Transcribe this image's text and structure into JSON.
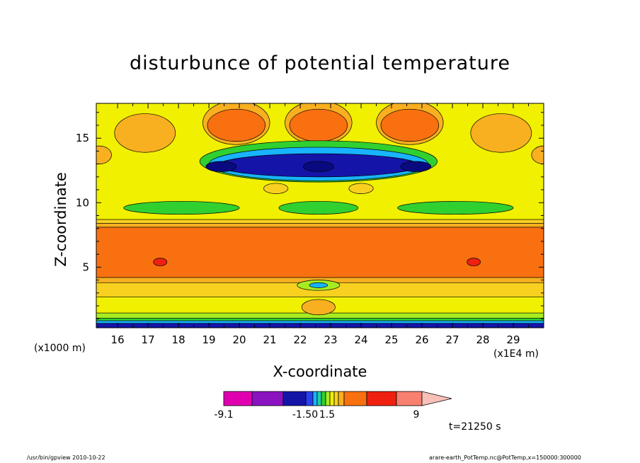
{
  "chart_data": {
    "type": "heatmap",
    "title": "disturbunce of potential temperature",
    "xlabel": "X-coordinate",
    "ylabel": "Z-coordinate",
    "x_unit": "(x1E4 m)",
    "y_unit": "(x1000 m)",
    "xlim": [
      15.3,
      30.0
    ],
    "ylim": [
      0.3,
      17.7
    ],
    "x_ticks": [
      "16",
      "17",
      "18",
      "19",
      "20",
      "21",
      "22",
      "23",
      "24",
      "25",
      "26",
      "27",
      "28",
      "29"
    ],
    "y_ticks": [
      "5",
      "10",
      "15"
    ],
    "time_label": "t=21250 s",
    "colorbar": {
      "tick_labels": [
        "-9.1",
        "-1.50",
        "1.5",
        "9"
      ],
      "colors": [
        "#e000b0",
        "#8a12c0",
        "#1414a8",
        "#2840f0",
        "#18b4ff",
        "#20d0a0",
        "#30d030",
        "#a8ec20",
        "#f0f000",
        "#f8d020",
        "#f8b020",
        "#f87010",
        "#f02010",
        "#f88070",
        "#f8c0b8"
      ]
    },
    "fields": [
      {
        "type": "band",
        "z": [
          0.3,
          0.65
        ],
        "color": "#1414a8"
      },
      {
        "type": "band",
        "z": [
          0.65,
          0.85
        ],
        "color": "#18b4ff"
      },
      {
        "type": "band",
        "z": [
          0.85,
          1.05
        ],
        "color": "#30d030"
      },
      {
        "type": "band",
        "z": [
          1.05,
          1.45
        ],
        "color": "#a8ec20"
      },
      {
        "type": "band",
        "z": [
          1.45,
          2.7
        ],
        "color": "#f0f000"
      },
      {
        "type": "band",
        "z": [
          2.7,
          3.8
        ],
        "color": "#f8d020"
      },
      {
        "type": "band",
        "z": [
          3.8,
          4.2
        ],
        "color": "#f8b020"
      },
      {
        "type": "band",
        "z": [
          4.2,
          8.1
        ],
        "color": "#f87010"
      },
      {
        "type": "band",
        "z": [
          8.1,
          8.4
        ],
        "color": "#f8b020"
      },
      {
        "type": "band",
        "z": [
          8.4,
          8.7
        ],
        "color": "#f8d020"
      },
      {
        "type": "band",
        "z": [
          8.7,
          17.7
        ],
        "color": "#f0f000"
      },
      {
        "type": "blob",
        "x": 19.9,
        "z": 16.2,
        "rx": 1.1,
        "rz": 1.7,
        "color": "#f8b020"
      },
      {
        "type": "blob",
        "x": 22.6,
        "z": 16.2,
        "rx": 1.1,
        "rz": 1.7,
        "color": "#f8b020"
      },
      {
        "type": "blob",
        "x": 25.6,
        "z": 16.2,
        "rx": 1.1,
        "rz": 1.7,
        "color": "#f8b020"
      },
      {
        "type": "blob",
        "x": 19.9,
        "z": 16.0,
        "rx": 0.95,
        "rz": 1.25,
        "color": "#f87010"
      },
      {
        "type": "blob",
        "x": 22.6,
        "z": 16.0,
        "rx": 0.95,
        "rz": 1.25,
        "color": "#f87010"
      },
      {
        "type": "blob",
        "x": 25.6,
        "z": 16.0,
        "rx": 0.95,
        "rz": 1.25,
        "color": "#f87010"
      },
      {
        "type": "blob",
        "x": 16.9,
        "z": 15.4,
        "rx": 1.0,
        "rz": 1.5,
        "color": "#f8b020"
      },
      {
        "type": "blob",
        "x": 28.6,
        "z": 15.4,
        "rx": 1.0,
        "rz": 1.5,
        "color": "#f8b020"
      },
      {
        "type": "blob",
        "x": 15.4,
        "z": 13.7,
        "rx": 0.4,
        "rz": 0.7,
        "color": "#f8b020"
      },
      {
        "type": "blob",
        "x": 30.0,
        "z": 13.7,
        "rx": 0.4,
        "rz": 0.7,
        "color": "#f8b020"
      },
      {
        "type": "blob",
        "x": 22.6,
        "z": 13.2,
        "rx": 3.9,
        "rz": 1.6,
        "color": "#30d030"
      },
      {
        "type": "blob",
        "x": 22.6,
        "z": 13.0,
        "rx": 3.6,
        "rz": 1.3,
        "color": "#18b4ff"
      },
      {
        "type": "blob",
        "x": 22.6,
        "z": 12.9,
        "rx": 3.3,
        "rz": 0.9,
        "color": "#1414a8"
      },
      {
        "type": "blob",
        "x": 19.4,
        "z": 12.8,
        "rx": 0.5,
        "rz": 0.4,
        "color": "#0a0a80"
      },
      {
        "type": "blob",
        "x": 22.6,
        "z": 12.8,
        "rx": 0.5,
        "rz": 0.4,
        "color": "#0a0a80"
      },
      {
        "type": "blob",
        "x": 25.8,
        "z": 12.8,
        "rx": 0.5,
        "rz": 0.4,
        "color": "#0a0a80"
      },
      {
        "type": "blob",
        "x": 18.1,
        "z": 9.6,
        "rx": 1.9,
        "rz": 0.5,
        "color": "#30d030"
      },
      {
        "type": "blob",
        "x": 22.6,
        "z": 9.6,
        "rx": 1.3,
        "rz": 0.5,
        "color": "#30d030"
      },
      {
        "type": "blob",
        "x": 27.1,
        "z": 9.6,
        "rx": 1.9,
        "rz": 0.5,
        "color": "#30d030"
      },
      {
        "type": "blob",
        "x": 21.2,
        "z": 11.1,
        "rx": 0.4,
        "rz": 0.4,
        "color": "#f8d020"
      },
      {
        "type": "blob",
        "x": 24.0,
        "z": 11.1,
        "rx": 0.4,
        "rz": 0.4,
        "color": "#f8d020"
      },
      {
        "type": "blob",
        "x": 17.4,
        "z": 5.4,
        "rx": 0.22,
        "rz": 0.3,
        "color": "#f02010"
      },
      {
        "type": "blob",
        "x": 27.7,
        "z": 5.4,
        "rx": 0.22,
        "rz": 0.3,
        "color": "#f02010"
      },
      {
        "type": "blob",
        "x": 22.6,
        "z": 3.6,
        "rx": 0.7,
        "rz": 0.4,
        "color": "#a8ec20"
      },
      {
        "type": "blob",
        "x": 22.6,
        "z": 3.6,
        "rx": 0.3,
        "rz": 0.2,
        "color": "#18b4ff"
      },
      {
        "type": "blob",
        "x": 22.6,
        "z": 1.9,
        "rx": 0.55,
        "rz": 0.6,
        "color": "#f8b020"
      }
    ]
  },
  "footer": {
    "left": "/usr/bin/gpview   2010-10-22",
    "right": "arare-earth_PotTemp.nc@PotTemp,x=150000:300000"
  }
}
